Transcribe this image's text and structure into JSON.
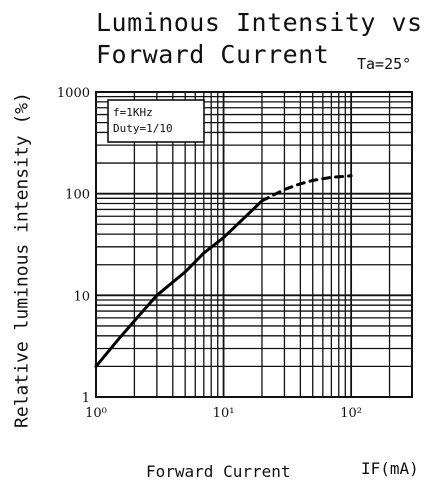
{
  "chart_data": {
    "type": "line",
    "title_line1": "Luminous Intensity vs",
    "title_line2": "Forward Current",
    "condition": "Ta=25°",
    "ylabel": "Relative luminous intensity (%)",
    "xlabel": "Forward Current",
    "xlabel_unit": "IF(mA)",
    "xscale": "log",
    "yscale": "log",
    "xlim": [
      1,
      300
    ],
    "ylim": [
      1,
      1000
    ],
    "x_ticks": [
      {
        "value": 1,
        "label": "10⁰"
      },
      {
        "value": 10,
        "label": "10¹"
      },
      {
        "value": 100,
        "label": "10²"
      }
    ],
    "y_ticks": [
      {
        "value": 1,
        "label": "1"
      },
      {
        "value": 10,
        "label": "10"
      },
      {
        "value": 100,
        "label": "100"
      },
      {
        "value": 1000,
        "label": "1000"
      }
    ],
    "annotation": [
      "f=1KHz",
      "Duty=1/10"
    ],
    "grid": true,
    "series": [
      {
        "segments": [
          {
            "style": "solid",
            "x": [
              1,
              1.5,
              2,
              3,
              5,
              7,
              10,
              15,
              20
            ],
            "y": [
              2,
              3.7,
              5.6,
              10,
              17,
              26,
              37,
              60,
              85
            ]
          },
          {
            "style": "dashed",
            "x": [
              20,
              30,
              40,
              50,
              70,
              100
            ],
            "y": [
              85,
              110,
              125,
              135,
              145,
              150
            ]
          }
        ]
      }
    ]
  }
}
